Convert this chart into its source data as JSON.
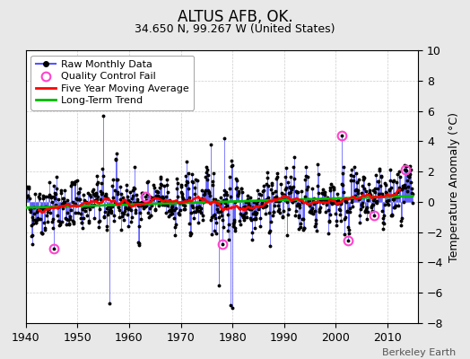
{
  "title": "ALTUS AFB, OK.",
  "subtitle": "34.650 N, 99.267 W (United States)",
  "ylabel": "Temperature Anomaly (°C)",
  "credit": "Berkeley Earth",
  "ylim": [
    -8,
    10
  ],
  "xlim": [
    1940,
    2016
  ],
  "xticks": [
    1940,
    1950,
    1960,
    1970,
    1980,
    1990,
    2000,
    2010
  ],
  "yticks": [
    -8,
    -6,
    -4,
    -2,
    0,
    2,
    4,
    6,
    8,
    10
  ],
  "bg_color": "#e8e8e8",
  "plot_bg_color": "#ffffff",
  "raw_line_color": "#5555ff",
  "raw_dot_color": "#000000",
  "ma_color": "#ff0000",
  "trend_color": "#00bb00",
  "qc_color": "#ff44cc",
  "seed": 42,
  "start_year": 1940.0,
  "n_months": 900,
  "noise_std": 1.8,
  "trend_slope": 0.006,
  "trend_intercept": -0.25,
  "ma_window": 60,
  "title_fontsize": 12,
  "subtitle_fontsize": 9,
  "tick_fontsize": 9,
  "ylabel_fontsize": 9,
  "legend_fontsize": 8,
  "credit_fontsize": 8,
  "qc_fail_times": [
    1945.5,
    1963.2,
    1978.1,
    2001.2,
    2002.3,
    2007.5,
    2013.5
  ],
  "qc_fail_values": [
    -3.1,
    0.35,
    -2.8,
    4.35,
    -2.55,
    -0.9,
    2.15
  ],
  "extra_spikes": {
    "indices": [
      180,
      195,
      430,
      448,
      462,
      475,
      480
    ],
    "values": [
      5.7,
      -6.7,
      3.8,
      -5.5,
      4.2,
      -6.8,
      -7.0
    ]
  }
}
